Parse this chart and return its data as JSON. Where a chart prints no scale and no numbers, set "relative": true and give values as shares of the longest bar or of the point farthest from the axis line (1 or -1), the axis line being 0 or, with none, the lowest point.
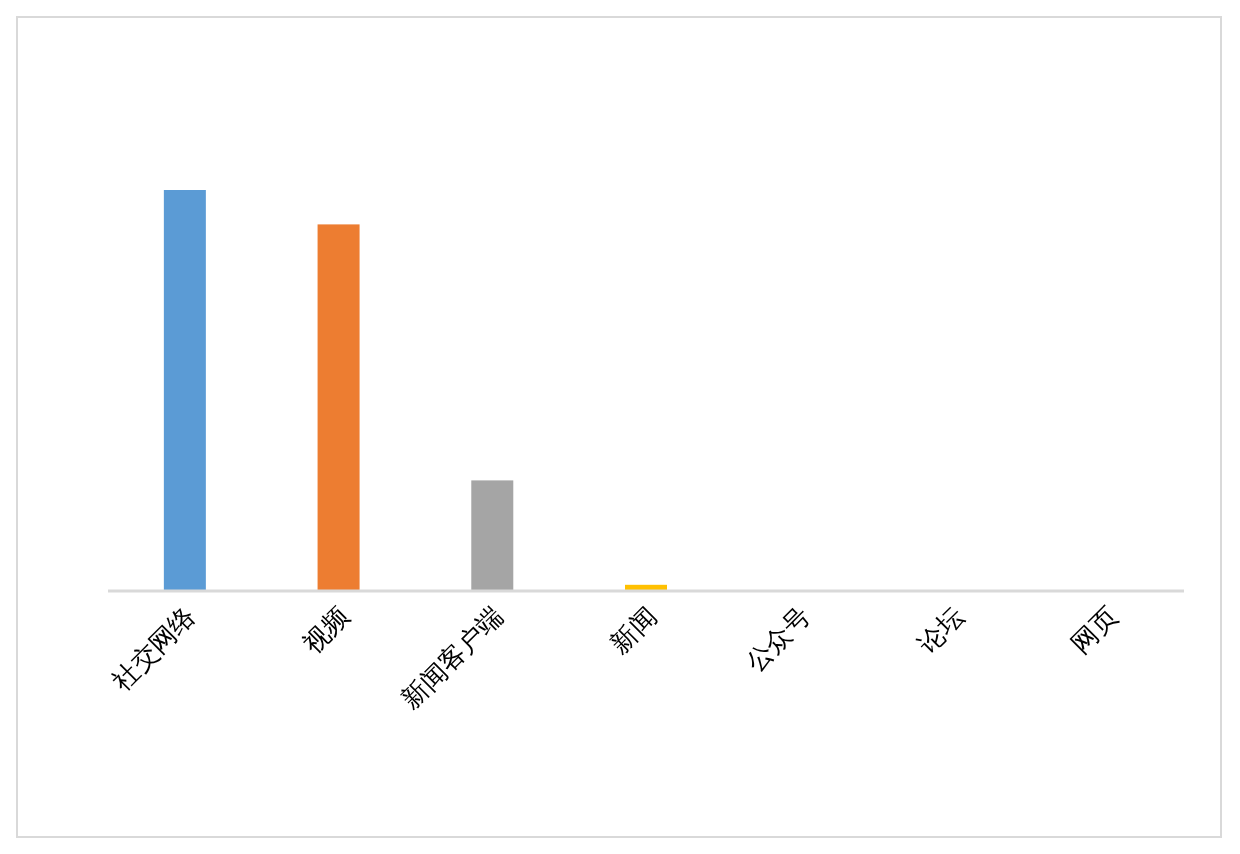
{
  "chart_data": {
    "type": "bar",
    "relative": true,
    "categories": [
      "社交网络",
      "视频",
      "新闻客户端",
      "新闻",
      "公众号",
      "论坛",
      "网页"
    ],
    "values": [
      1,
      0.914,
      0.274,
      0.013,
      0,
      0,
      0
    ],
    "colors": [
      "#5b9bd5",
      "#ed7d31",
      "#a5a5a5",
      "#ffc000",
      "#4472c4",
      "#70ad47",
      "#255e91"
    ],
    "grid": false,
    "legend": false
  }
}
